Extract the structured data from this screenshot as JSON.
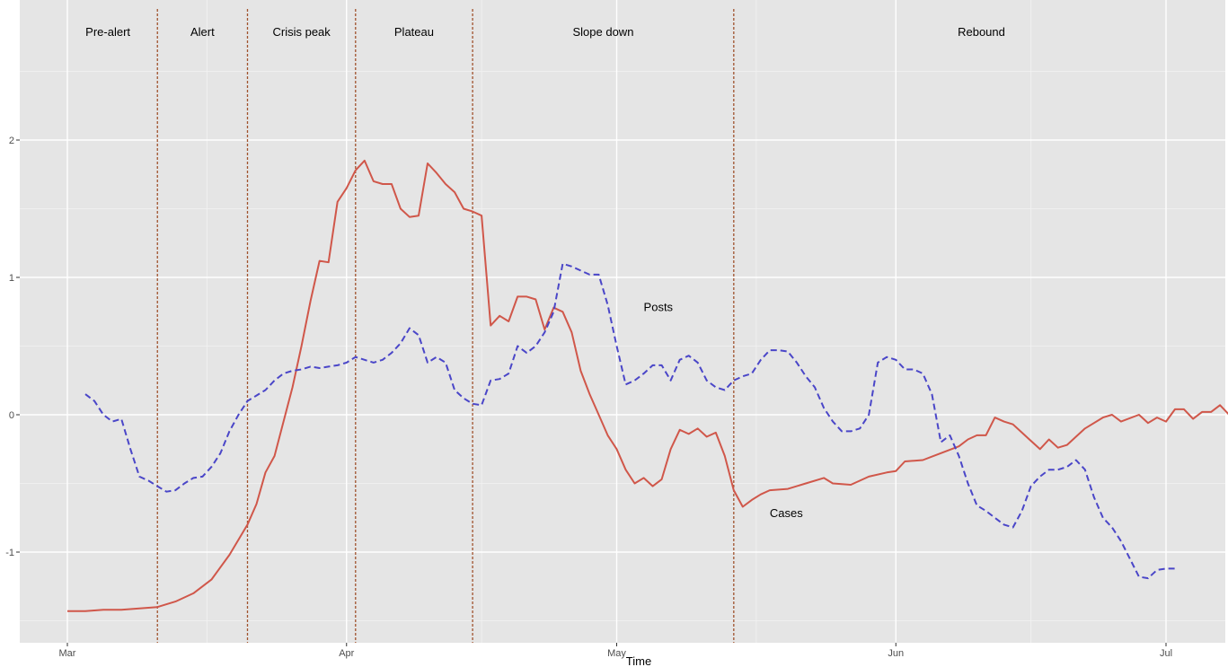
{
  "chart_data": {
    "type": "line",
    "title": "",
    "xlabel": "Time",
    "ylabel": "",
    "x_range_days": [
      "2020-02-29",
      "2020-07-08"
    ],
    "ylim": [
      -1.5,
      2.6
    ],
    "grid": true,
    "background_color": "#e5e5e5",
    "x_ticks": [
      {
        "label": "Mar",
        "date": "2020-03-01"
      },
      {
        "label": "Apr",
        "date": "2020-04-01"
      },
      {
        "label": "May",
        "date": "2020-05-01"
      },
      {
        "label": "Jun",
        "date": "2020-06-01"
      },
      {
        "label": "Jul",
        "date": "2020-07-01"
      }
    ],
    "y_ticks": [
      -1,
      0,
      1,
      2
    ],
    "phases": [
      {
        "label": "Pre-alert",
        "start": "2020-02-29",
        "end": "2020-03-11"
      },
      {
        "label": "Alert",
        "start": "2020-03-11",
        "end": "2020-03-21"
      },
      {
        "label": "Crisis peak",
        "start": "2020-03-21",
        "end": "2020-04-02"
      },
      {
        "label": "Plateau",
        "start": "2020-04-02",
        "end": "2020-04-15"
      },
      {
        "label": "Slope down",
        "start": "2020-04-15",
        "end": "2020-05-14"
      },
      {
        "label": "Rebound",
        "start": "2020-05-14",
        "end": "2020-07-08"
      }
    ],
    "boundary_color": "#a0522d",
    "series": [
      {
        "name": "Cases",
        "color": "#d0574a",
        "dash": "solid",
        "label_at": {
          "date": "2020-05-17",
          "value": -0.72
        },
        "points": [
          [
            "2020-03-01",
            -1.43
          ],
          [
            "2020-03-03",
            -1.43
          ],
          [
            "2020-03-05",
            -1.42
          ],
          [
            "2020-03-07",
            -1.42
          ],
          [
            "2020-03-09",
            -1.41
          ],
          [
            "2020-03-11",
            -1.4
          ],
          [
            "2020-03-13",
            -1.36
          ],
          [
            "2020-03-15",
            -1.3
          ],
          [
            "2020-03-17",
            -1.2
          ],
          [
            "2020-03-19",
            -1.02
          ],
          [
            "2020-03-21",
            -0.8
          ],
          [
            "2020-03-22",
            -0.65
          ],
          [
            "2020-03-23",
            -0.42
          ],
          [
            "2020-03-24",
            -0.3
          ],
          [
            "2020-03-25",
            -0.05
          ],
          [
            "2020-03-26",
            0.2
          ],
          [
            "2020-03-27",
            0.5
          ],
          [
            "2020-03-28",
            0.83
          ],
          [
            "2020-03-29",
            1.12
          ],
          [
            "2020-03-30",
            1.11
          ],
          [
            "2020-03-31",
            1.55
          ],
          [
            "2020-04-01",
            1.65
          ],
          [
            "2020-04-02",
            1.78
          ],
          [
            "2020-04-03",
            1.85
          ],
          [
            "2020-04-04",
            1.7
          ],
          [
            "2020-04-05",
            1.68
          ],
          [
            "2020-04-06",
            1.68
          ],
          [
            "2020-04-07",
            1.5
          ],
          [
            "2020-04-08",
            1.44
          ],
          [
            "2020-04-09",
            1.45
          ],
          [
            "2020-04-10",
            1.83
          ],
          [
            "2020-04-11",
            1.76
          ],
          [
            "2020-04-12",
            1.68
          ],
          [
            "2020-04-13",
            1.62
          ],
          [
            "2020-04-14",
            1.5
          ],
          [
            "2020-04-15",
            1.48
          ],
          [
            "2020-04-16",
            1.45
          ],
          [
            "2020-04-17",
            0.65
          ],
          [
            "2020-04-18",
            0.72
          ],
          [
            "2020-04-19",
            0.68
          ],
          [
            "2020-04-20",
            0.86
          ],
          [
            "2020-04-21",
            0.86
          ],
          [
            "2020-04-22",
            0.84
          ],
          [
            "2020-04-23",
            0.62
          ],
          [
            "2020-04-24",
            0.78
          ],
          [
            "2020-04-25",
            0.75
          ],
          [
            "2020-04-26",
            0.6
          ],
          [
            "2020-04-27",
            0.32
          ],
          [
            "2020-04-28",
            0.15
          ],
          [
            "2020-04-29",
            0.0
          ],
          [
            "2020-04-30",
            -0.15
          ],
          [
            "2020-05-01",
            -0.25
          ],
          [
            "2020-05-02",
            -0.4
          ],
          [
            "2020-05-03",
            -0.5
          ],
          [
            "2020-05-04",
            -0.46
          ],
          [
            "2020-05-05",
            -0.52
          ],
          [
            "2020-05-06",
            -0.47
          ],
          [
            "2020-05-07",
            -0.25
          ],
          [
            "2020-05-08",
            -0.11
          ],
          [
            "2020-05-09",
            -0.14
          ],
          [
            "2020-05-10",
            -0.1
          ],
          [
            "2020-05-11",
            -0.16
          ],
          [
            "2020-05-12",
            -0.13
          ],
          [
            "2020-05-13",
            -0.3
          ],
          [
            "2020-05-14",
            -0.55
          ],
          [
            "2020-05-15",
            -0.67
          ],
          [
            "2020-05-16",
            -0.62
          ],
          [
            "2020-05-17",
            -0.58
          ],
          [
            "2020-05-18",
            -0.55
          ],
          [
            "2020-05-20",
            -0.54
          ],
          [
            "2020-05-22",
            -0.5
          ],
          [
            "2020-05-24",
            -0.46
          ],
          [
            "2020-05-25",
            -0.5
          ],
          [
            "2020-05-27",
            -0.51
          ],
          [
            "2020-05-29",
            -0.45
          ],
          [
            "2020-05-31",
            -0.42
          ],
          [
            "2020-06-01",
            -0.41
          ],
          [
            "2020-06-02",
            -0.34
          ],
          [
            "2020-06-04",
            -0.33
          ],
          [
            "2020-06-06",
            -0.28
          ],
          [
            "2020-06-08",
            -0.23
          ],
          [
            "2020-06-09",
            -0.18
          ],
          [
            "2020-06-10",
            -0.15
          ],
          [
            "2020-06-11",
            -0.15
          ],
          [
            "2020-06-12",
            -0.02
          ],
          [
            "2020-06-13",
            -0.05
          ],
          [
            "2020-06-14",
            -0.07
          ],
          [
            "2020-06-15",
            -0.13
          ],
          [
            "2020-06-17",
            -0.25
          ],
          [
            "2020-06-18",
            -0.18
          ],
          [
            "2020-06-19",
            -0.24
          ],
          [
            "2020-06-20",
            -0.22
          ],
          [
            "2020-06-22",
            -0.1
          ],
          [
            "2020-06-24",
            -0.02
          ],
          [
            "2020-06-25",
            0.0
          ],
          [
            "2020-06-26",
            -0.05
          ],
          [
            "2020-06-28",
            0.0
          ],
          [
            "2020-06-29",
            -0.06
          ],
          [
            "2020-06-30",
            -0.02
          ],
          [
            "2020-07-01",
            -0.05
          ],
          [
            "2020-07-02",
            0.04
          ],
          [
            "2020-07-03",
            0.04
          ],
          [
            "2020-07-04",
            -0.03
          ],
          [
            "2020-07-05",
            0.02
          ],
          [
            "2020-07-06",
            0.02
          ],
          [
            "2020-07-07",
            0.07
          ],
          [
            "2020-07-08",
            0.0
          ]
        ]
      },
      {
        "name": "Posts",
        "color": "#4a46c8",
        "dash": "dashed",
        "label_at": {
          "date": "2020-05-03",
          "value": 0.78
        },
        "points": [
          [
            "2020-03-03",
            0.15
          ],
          [
            "2020-03-04",
            0.1
          ],
          [
            "2020-03-05",
            0.0
          ],
          [
            "2020-03-06",
            -0.05
          ],
          [
            "2020-03-07",
            -0.03
          ],
          [
            "2020-03-08",
            -0.25
          ],
          [
            "2020-03-09",
            -0.45
          ],
          [
            "2020-03-10",
            -0.48
          ],
          [
            "2020-03-11",
            -0.52
          ],
          [
            "2020-03-12",
            -0.56
          ],
          [
            "2020-03-13",
            -0.55
          ],
          [
            "2020-03-14",
            -0.5
          ],
          [
            "2020-03-15",
            -0.46
          ],
          [
            "2020-03-16",
            -0.45
          ],
          [
            "2020-03-17",
            -0.38
          ],
          [
            "2020-03-18",
            -0.28
          ],
          [
            "2020-03-19",
            -0.12
          ],
          [
            "2020-03-20",
            0.0
          ],
          [
            "2020-03-21",
            0.1
          ],
          [
            "2020-03-22",
            0.14
          ],
          [
            "2020-03-23",
            0.18
          ],
          [
            "2020-03-24",
            0.25
          ],
          [
            "2020-03-25",
            0.3
          ],
          [
            "2020-03-26",
            0.32
          ],
          [
            "2020-03-27",
            0.33
          ],
          [
            "2020-03-28",
            0.35
          ],
          [
            "2020-03-29",
            0.34
          ],
          [
            "2020-03-30",
            0.35
          ],
          [
            "2020-03-31",
            0.36
          ],
          [
            "2020-04-01",
            0.38
          ],
          [
            "2020-04-02",
            0.42
          ],
          [
            "2020-04-03",
            0.4
          ],
          [
            "2020-04-04",
            0.38
          ],
          [
            "2020-04-05",
            0.4
          ],
          [
            "2020-04-06",
            0.45
          ],
          [
            "2020-04-07",
            0.52
          ],
          [
            "2020-04-08",
            0.63
          ],
          [
            "2020-04-09",
            0.58
          ],
          [
            "2020-04-10",
            0.38
          ],
          [
            "2020-04-11",
            0.42
          ],
          [
            "2020-04-12",
            0.38
          ],
          [
            "2020-04-13",
            0.18
          ],
          [
            "2020-04-14",
            0.12
          ],
          [
            "2020-04-15",
            0.08
          ],
          [
            "2020-04-16",
            0.07
          ],
          [
            "2020-04-17",
            0.25
          ],
          [
            "2020-04-18",
            0.26
          ],
          [
            "2020-04-19",
            0.3
          ],
          [
            "2020-04-20",
            0.5
          ],
          [
            "2020-04-21",
            0.45
          ],
          [
            "2020-04-22",
            0.5
          ],
          [
            "2020-04-23",
            0.6
          ],
          [
            "2020-04-24",
            0.75
          ],
          [
            "2020-04-25",
            1.1
          ],
          [
            "2020-04-26",
            1.08
          ],
          [
            "2020-04-27",
            1.05
          ],
          [
            "2020-04-28",
            1.02
          ],
          [
            "2020-04-29",
            1.02
          ],
          [
            "2020-04-30",
            0.8
          ],
          [
            "2020-05-01",
            0.5
          ],
          [
            "2020-05-02",
            0.22
          ],
          [
            "2020-05-03",
            0.25
          ],
          [
            "2020-05-04",
            0.3
          ],
          [
            "2020-05-05",
            0.36
          ],
          [
            "2020-05-06",
            0.36
          ],
          [
            "2020-05-07",
            0.25
          ],
          [
            "2020-05-08",
            0.4
          ],
          [
            "2020-05-09",
            0.43
          ],
          [
            "2020-05-10",
            0.38
          ],
          [
            "2020-05-11",
            0.25
          ],
          [
            "2020-05-12",
            0.2
          ],
          [
            "2020-05-13",
            0.18
          ],
          [
            "2020-05-14",
            0.25
          ],
          [
            "2020-05-15",
            0.28
          ],
          [
            "2020-05-16",
            0.3
          ],
          [
            "2020-05-17",
            0.4
          ],
          [
            "2020-05-18",
            0.47
          ],
          [
            "2020-05-19",
            0.47
          ],
          [
            "2020-05-20",
            0.46
          ],
          [
            "2020-05-21",
            0.38
          ],
          [
            "2020-05-22",
            0.28
          ],
          [
            "2020-05-23",
            0.2
          ],
          [
            "2020-05-24",
            0.05
          ],
          [
            "2020-05-25",
            -0.05
          ],
          [
            "2020-05-26",
            -0.12
          ],
          [
            "2020-05-27",
            -0.12
          ],
          [
            "2020-05-28",
            -0.1
          ],
          [
            "2020-05-29",
            0.0
          ],
          [
            "2020-05-30",
            0.38
          ],
          [
            "2020-05-31",
            0.42
          ],
          [
            "2020-06-01",
            0.4
          ],
          [
            "2020-06-02",
            0.33
          ],
          [
            "2020-06-03",
            0.33
          ],
          [
            "2020-06-04",
            0.3
          ],
          [
            "2020-06-05",
            0.15
          ],
          [
            "2020-06-06",
            -0.2
          ],
          [
            "2020-06-07",
            -0.15
          ],
          [
            "2020-06-08",
            -0.3
          ],
          [
            "2020-06-09",
            -0.5
          ],
          [
            "2020-06-10",
            -0.66
          ],
          [
            "2020-06-11",
            -0.7
          ],
          [
            "2020-06-12",
            -0.75
          ],
          [
            "2020-06-13",
            -0.8
          ],
          [
            "2020-06-14",
            -0.82
          ],
          [
            "2020-06-15",
            -0.7
          ],
          [
            "2020-06-16",
            -0.52
          ],
          [
            "2020-06-17",
            -0.45
          ],
          [
            "2020-06-18",
            -0.4
          ],
          [
            "2020-06-19",
            -0.4
          ],
          [
            "2020-06-20",
            -0.38
          ],
          [
            "2020-06-21",
            -0.33
          ],
          [
            "2020-06-22",
            -0.4
          ],
          [
            "2020-06-23",
            -0.6
          ],
          [
            "2020-06-24",
            -0.75
          ],
          [
            "2020-06-25",
            -0.82
          ],
          [
            "2020-06-26",
            -0.92
          ],
          [
            "2020-06-27",
            -1.05
          ],
          [
            "2020-06-28",
            -1.18
          ],
          [
            "2020-06-29",
            -1.19
          ],
          [
            "2020-06-30",
            -1.13
          ],
          [
            "2020-07-01",
            -1.12
          ],
          [
            "2020-07-02",
            -1.12
          ]
        ]
      }
    ]
  }
}
